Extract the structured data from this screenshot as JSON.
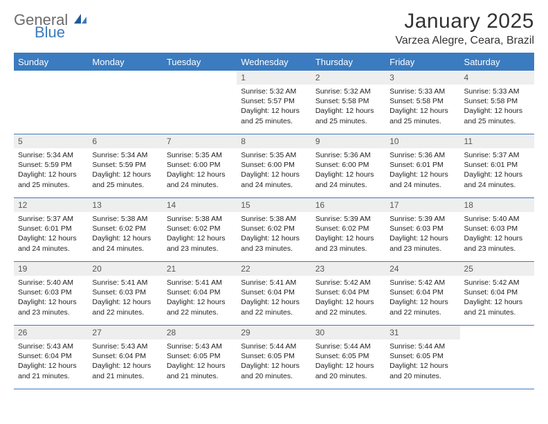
{
  "logo": {
    "general": "General",
    "blue": "Blue"
  },
  "title": "January 2025",
  "location": "Varzea Alegre, Ceara, Brazil",
  "colors": {
    "header_bg": "#3b7bbf",
    "header_text": "#ffffff",
    "daynum_bg": "#eeeeee",
    "border": "#3b7bbf",
    "logo_general": "#6b6b6b",
    "logo_blue": "#3b7bbf",
    "body_text": "#333333"
  },
  "weekdays": [
    "Sunday",
    "Monday",
    "Tuesday",
    "Wednesday",
    "Thursday",
    "Friday",
    "Saturday"
  ],
  "weeks": [
    [
      null,
      null,
      null,
      {
        "n": "1",
        "sr": "5:32 AM",
        "ss": "5:57 PM",
        "dl": "12 hours and 25 minutes."
      },
      {
        "n": "2",
        "sr": "5:32 AM",
        "ss": "5:58 PM",
        "dl": "12 hours and 25 minutes."
      },
      {
        "n": "3",
        "sr": "5:33 AM",
        "ss": "5:58 PM",
        "dl": "12 hours and 25 minutes."
      },
      {
        "n": "4",
        "sr": "5:33 AM",
        "ss": "5:58 PM",
        "dl": "12 hours and 25 minutes."
      }
    ],
    [
      {
        "n": "5",
        "sr": "5:34 AM",
        "ss": "5:59 PM",
        "dl": "12 hours and 25 minutes."
      },
      {
        "n": "6",
        "sr": "5:34 AM",
        "ss": "5:59 PM",
        "dl": "12 hours and 25 minutes."
      },
      {
        "n": "7",
        "sr": "5:35 AM",
        "ss": "6:00 PM",
        "dl": "12 hours and 24 minutes."
      },
      {
        "n": "8",
        "sr": "5:35 AM",
        "ss": "6:00 PM",
        "dl": "12 hours and 24 minutes."
      },
      {
        "n": "9",
        "sr": "5:36 AM",
        "ss": "6:00 PM",
        "dl": "12 hours and 24 minutes."
      },
      {
        "n": "10",
        "sr": "5:36 AM",
        "ss": "6:01 PM",
        "dl": "12 hours and 24 minutes."
      },
      {
        "n": "11",
        "sr": "5:37 AM",
        "ss": "6:01 PM",
        "dl": "12 hours and 24 minutes."
      }
    ],
    [
      {
        "n": "12",
        "sr": "5:37 AM",
        "ss": "6:01 PM",
        "dl": "12 hours and 24 minutes."
      },
      {
        "n": "13",
        "sr": "5:38 AM",
        "ss": "6:02 PM",
        "dl": "12 hours and 24 minutes."
      },
      {
        "n": "14",
        "sr": "5:38 AM",
        "ss": "6:02 PM",
        "dl": "12 hours and 23 minutes."
      },
      {
        "n": "15",
        "sr": "5:38 AM",
        "ss": "6:02 PM",
        "dl": "12 hours and 23 minutes."
      },
      {
        "n": "16",
        "sr": "5:39 AM",
        "ss": "6:02 PM",
        "dl": "12 hours and 23 minutes."
      },
      {
        "n": "17",
        "sr": "5:39 AM",
        "ss": "6:03 PM",
        "dl": "12 hours and 23 minutes."
      },
      {
        "n": "18",
        "sr": "5:40 AM",
        "ss": "6:03 PM",
        "dl": "12 hours and 23 minutes."
      }
    ],
    [
      {
        "n": "19",
        "sr": "5:40 AM",
        "ss": "6:03 PM",
        "dl": "12 hours and 23 minutes."
      },
      {
        "n": "20",
        "sr": "5:41 AM",
        "ss": "6:03 PM",
        "dl": "12 hours and 22 minutes."
      },
      {
        "n": "21",
        "sr": "5:41 AM",
        "ss": "6:04 PM",
        "dl": "12 hours and 22 minutes."
      },
      {
        "n": "22",
        "sr": "5:41 AM",
        "ss": "6:04 PM",
        "dl": "12 hours and 22 minutes."
      },
      {
        "n": "23",
        "sr": "5:42 AM",
        "ss": "6:04 PM",
        "dl": "12 hours and 22 minutes."
      },
      {
        "n": "24",
        "sr": "5:42 AM",
        "ss": "6:04 PM",
        "dl": "12 hours and 22 minutes."
      },
      {
        "n": "25",
        "sr": "5:42 AM",
        "ss": "6:04 PM",
        "dl": "12 hours and 21 minutes."
      }
    ],
    [
      {
        "n": "26",
        "sr": "5:43 AM",
        "ss": "6:04 PM",
        "dl": "12 hours and 21 minutes."
      },
      {
        "n": "27",
        "sr": "5:43 AM",
        "ss": "6:04 PM",
        "dl": "12 hours and 21 minutes."
      },
      {
        "n": "28",
        "sr": "5:43 AM",
        "ss": "6:05 PM",
        "dl": "12 hours and 21 minutes."
      },
      {
        "n": "29",
        "sr": "5:44 AM",
        "ss": "6:05 PM",
        "dl": "12 hours and 20 minutes."
      },
      {
        "n": "30",
        "sr": "5:44 AM",
        "ss": "6:05 PM",
        "dl": "12 hours and 20 minutes."
      },
      {
        "n": "31",
        "sr": "5:44 AM",
        "ss": "6:05 PM",
        "dl": "12 hours and 20 minutes."
      },
      null
    ]
  ],
  "labels": {
    "sunrise": "Sunrise:",
    "sunset": "Sunset:",
    "daylight": "Daylight:"
  }
}
